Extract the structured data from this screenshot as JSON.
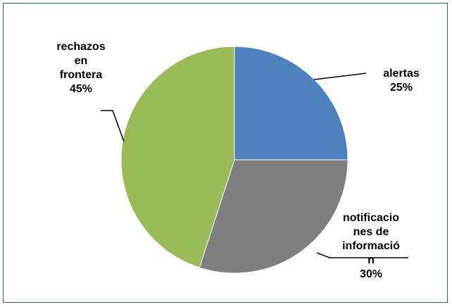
{
  "chart_data": {
    "type": "pie",
    "title": "",
    "slices": [
      {
        "label_lines": [
          "alertas",
          "25%"
        ],
        "value": 25,
        "color": "#4f81bd"
      },
      {
        "label_lines": [
          "notificacio",
          "nes de",
          "informació",
          "n",
          "30%"
        ],
        "value": 30,
        "color": "#7f7f7f"
      },
      {
        "label_lines": [
          "rechazos",
          "en",
          "frontera",
          "45%"
        ],
        "value": 45,
        "color": "#9bbb59"
      }
    ],
    "start_angle_deg": 0,
    "direction": "clockwise",
    "legend": "none",
    "frame_color": "#2f6b3a"
  }
}
